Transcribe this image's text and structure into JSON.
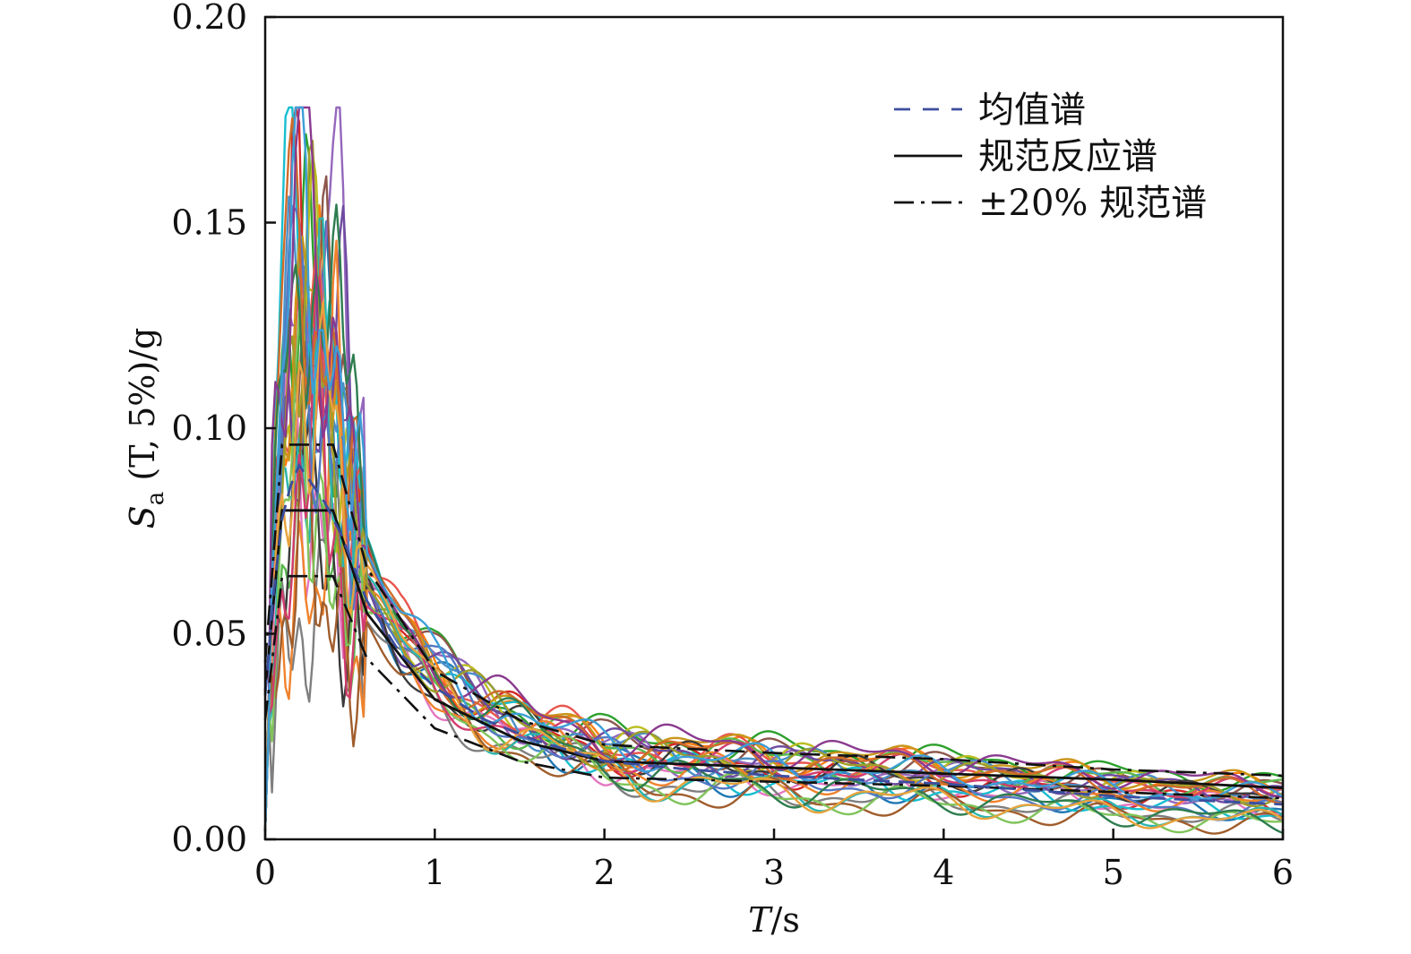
{
  "chart_data": {
    "type": "line",
    "xlabel": {
      "italic": "T",
      "unit": "/s"
    },
    "ylabel": {
      "S": "S",
      "sub": "a",
      "args": " (T, 5%)/g"
    },
    "xlim": [
      0,
      6
    ],
    "ylim": [
      0,
      0.2
    ],
    "x_ticks": [
      0,
      1,
      2,
      3,
      4,
      5,
      6
    ],
    "x_tick_labels": [
      "0",
      "1",
      "2",
      "3",
      "4",
      "5",
      "6"
    ],
    "y_ticks": [
      0,
      0.05,
      0.1,
      0.15,
      0.2
    ],
    "y_tick_labels": [
      "0.00",
      "0.05",
      "0.10",
      "0.15",
      "0.20"
    ],
    "grid": false,
    "legend_position": "top-right",
    "legend": [
      {
        "label": "均值谱",
        "style": "dashed",
        "color": "#3c4e9e"
      },
      {
        "label": "规范反应谱",
        "style": "solid",
        "color": "#111111"
      },
      {
        "label": "±20% 规范谱",
        "style": "dashdot",
        "color": "#111111"
      }
    ],
    "code_spectrum": {
      "alpha_max": 0.08,
      "T_rise_end": 0.1,
      "Tg": 0.4,
      "curve_points": [
        [
          0,
          0.036
        ],
        [
          0.1,
          0.08
        ],
        [
          0.4,
          0.08
        ],
        [
          0.6,
          0.055
        ],
        [
          1.0,
          0.034
        ],
        [
          1.5,
          0.024
        ],
        [
          2.0,
          0.019
        ],
        [
          3.0,
          0.0175
        ],
        [
          4.0,
          0.016
        ],
        [
          5.0,
          0.0145
        ],
        [
          6.0,
          0.0125
        ]
      ]
    },
    "upper_20_points": [
      [
        0,
        0.043
      ],
      [
        0.1,
        0.096
      ],
      [
        0.4,
        0.096
      ],
      [
        0.6,
        0.066
      ],
      [
        1.0,
        0.041
      ],
      [
        1.5,
        0.029
      ],
      [
        2.0,
        0.023
      ],
      [
        3.0,
        0.021
      ],
      [
        4.0,
        0.0195
      ],
      [
        5.0,
        0.017
      ],
      [
        6.0,
        0.0155
      ]
    ],
    "lower_20_points": [
      [
        0,
        0.029
      ],
      [
        0.1,
        0.064
      ],
      [
        0.4,
        0.064
      ],
      [
        0.6,
        0.044
      ],
      [
        1.0,
        0.027
      ],
      [
        1.5,
        0.019
      ],
      [
        2.0,
        0.015
      ],
      [
        3.0,
        0.014
      ],
      [
        4.0,
        0.013
      ],
      [
        5.0,
        0.0115
      ],
      [
        6.0,
        0.01
      ]
    ],
    "mean_points": [
      [
        0,
        0.035
      ],
      [
        0.05,
        0.06
      ],
      [
        0.1,
        0.078
      ],
      [
        0.15,
        0.086
      ],
      [
        0.2,
        0.091
      ],
      [
        0.25,
        0.088
      ],
      [
        0.3,
        0.085
      ],
      [
        0.35,
        0.082
      ],
      [
        0.45,
        0.074
      ],
      [
        0.6,
        0.058
      ],
      [
        0.8,
        0.045
      ],
      [
        1.0,
        0.037
      ],
      [
        1.3,
        0.029
      ],
      [
        1.6,
        0.024
      ],
      [
        2.0,
        0.019
      ],
      [
        2.5,
        0.017
      ],
      [
        3.0,
        0.0155
      ],
      [
        3.5,
        0.0145
      ],
      [
        4.0,
        0.0135
      ],
      [
        4.5,
        0.012
      ],
      [
        5.0,
        0.0105
      ],
      [
        5.5,
        0.0095
      ],
      [
        6.0,
        0.0085
      ]
    ],
    "record_colors": [
      "#1f77b4",
      "#ff7f0e",
      "#2ca02c",
      "#d62728",
      "#9467bd",
      "#8c564b",
      "#e377c2",
      "#7f7f7f",
      "#bcbd22",
      "#17becf",
      "#e8554e",
      "#4a8fc7",
      "#58b84d",
      "#c9961a",
      "#6e4aa0",
      "#3a3a3a",
      "#f0822c",
      "#2bb5b0",
      "#a05d2c",
      "#7fc45a",
      "#d13c6e",
      "#5578c2",
      "#9e9e2a",
      "#cf6b2a",
      "#2e7d4f",
      "#8a3a8f",
      "#e8a33d",
      "#3d9ed6"
    ]
  }
}
